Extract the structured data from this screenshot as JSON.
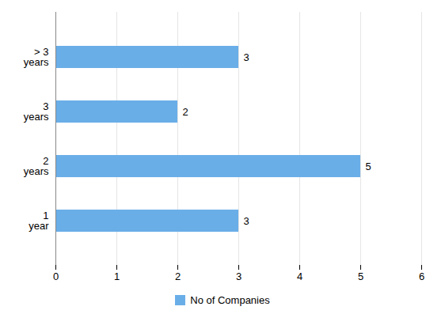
{
  "chart_data": {
    "type": "bar",
    "orientation": "horizontal",
    "categories": [
      "> 3\nyears",
      "3\nyears",
      "2\nyears",
      "1\nyear"
    ],
    "series": [
      {
        "name": "No of Companies",
        "color": "#6AAEE8",
        "values": [
          3,
          2,
          5,
          3
        ]
      }
    ],
    "xlim": [
      0,
      6
    ],
    "xticks": [
      0,
      1,
      2,
      3,
      4,
      5,
      6
    ],
    "grid": true,
    "legend": "bottom",
    "data_labels": true
  }
}
